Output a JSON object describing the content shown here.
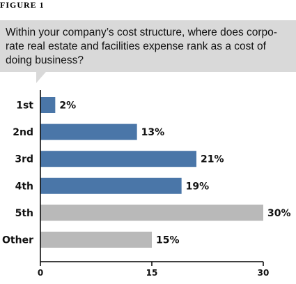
{
  "figure_label": "FIGURE 1",
  "question": "Within your company’s cost structure, where does corpo-rate real estate and facilities expense rank as a cost of doing business?",
  "colors": {
    "primary": "#4a76a8",
    "secondary": "#b9b9b9",
    "box": "#d9d9d9"
  },
  "chart_data": {
    "type": "bar",
    "orientation": "horizontal",
    "categories": [
      "1st",
      "2nd",
      "3rd",
      "4th",
      "5th",
      "Other"
    ],
    "values": [
      2,
      13,
      21,
      19,
      30,
      15
    ],
    "value_labels": [
      "2%",
      "13%",
      "21%",
      "19%",
      "30%",
      "15%"
    ],
    "bar_colors": [
      "#4a76a8",
      "#4a76a8",
      "#4a76a8",
      "#4a76a8",
      "#b9b9b9",
      "#b9b9b9"
    ],
    "xlim": [
      0,
      30
    ],
    "xticks": [
      0,
      15,
      30
    ],
    "title": "",
    "xlabel": "",
    "ylabel": "",
    "grid": false
  }
}
